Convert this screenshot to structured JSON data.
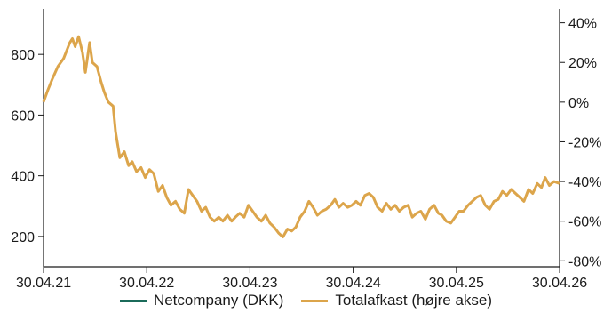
{
  "chart_data": {
    "type": "line",
    "x_tick_labels": [
      "30.04.21",
      "30.04.22",
      "30.04.23",
      "30.04.24",
      "30.04.25",
      "30.04.26"
    ],
    "left_axis": {
      "ticks": [
        200,
        400,
        600,
        800
      ],
      "ylim": [
        100,
        950
      ]
    },
    "right_axis": {
      "ticks": [
        "-80%",
        "-60%",
        "-40%",
        "-20%",
        "0%",
        "20%",
        "40%"
      ],
      "ylim": [
        -83,
        47
      ]
    },
    "series": [
      {
        "name": "Netcompany (DKK)",
        "color": "#1b6b5a",
        "axis": "left",
        "values": []
      },
      {
        "name": "Totalafkast (højre akse)",
        "color": "#dca54b",
        "axis": "right",
        "x": [
          "2021-04-30",
          "2021-05-15",
          "2021-06-01",
          "2021-06-20",
          "2021-07-10",
          "2021-08-01",
          "2021-08-10",
          "2021-08-20",
          "2021-09-01",
          "2021-09-15",
          "2021-09-25",
          "2021-10-10",
          "2021-10-20",
          "2021-11-05",
          "2021-11-20",
          "2021-12-01",
          "2021-12-15",
          "2022-01-01",
          "2022-01-10",
          "2022-01-25",
          "2022-02-10",
          "2022-02-25",
          "2022-03-10",
          "2022-03-25",
          "2022-04-10",
          "2022-04-25",
          "2022-05-10",
          "2022-05-25",
          "2022-06-10",
          "2022-06-25",
          "2022-07-10",
          "2022-07-25",
          "2022-08-10",
          "2022-08-25",
          "2022-09-10",
          "2022-09-25",
          "2022-10-10",
          "2022-10-25",
          "2022-11-10",
          "2022-11-25",
          "2022-12-10",
          "2022-12-25",
          "2023-01-10",
          "2023-01-25",
          "2023-02-10",
          "2023-02-25",
          "2023-03-10",
          "2023-03-25",
          "2023-04-10",
          "2023-04-25",
          "2023-05-10",
          "2023-05-25",
          "2023-06-10",
          "2023-06-25",
          "2023-07-10",
          "2023-07-25",
          "2023-08-10",
          "2023-08-25",
          "2023-09-10",
          "2023-09-25",
          "2023-10-10",
          "2023-10-25",
          "2023-11-10",
          "2023-11-25",
          "2023-12-10",
          "2023-12-25",
          "2024-01-10",
          "2024-01-25",
          "2024-02-10",
          "2024-02-25",
          "2024-03-10",
          "2024-03-25",
          "2024-04-10",
          "2024-04-25",
          "2024-05-10",
          "2024-05-25",
          "2024-06-10",
          "2024-06-25",
          "2024-07-10",
          "2024-07-25",
          "2024-08-10",
          "2024-08-25",
          "2024-09-10",
          "2024-09-25",
          "2024-10-10",
          "2024-10-25",
          "2024-11-10",
          "2024-11-25",
          "2024-12-10",
          "2024-12-25",
          "2025-01-10",
          "2025-01-25",
          "2025-02-10",
          "2025-02-25",
          "2025-03-10",
          "2025-03-25",
          "2025-04-10",
          "2025-04-25",
          "2025-05-10",
          "2025-05-25",
          "2025-06-10",
          "2025-06-25",
          "2025-07-10",
          "2025-07-25",
          "2025-08-10",
          "2025-08-25",
          "2025-09-10",
          "2025-09-25",
          "2025-10-10",
          "2025-10-25",
          "2025-11-10",
          "2025-11-25",
          "2025-12-10",
          "2025-12-25",
          "2026-01-10",
          "2026-01-25",
          "2026-02-10",
          "2026-02-25",
          "2026-03-10",
          "2026-03-25",
          "2026-04-10",
          "2026-04-30"
        ],
        "values": [
          0,
          6,
          12,
          18,
          22,
          30,
          32,
          28,
          33,
          25,
          15,
          30,
          20,
          18,
          10,
          5,
          0,
          -2,
          -15,
          -28,
          -25,
          -32,
          -30,
          -35,
          -33,
          -38,
          -34,
          -36,
          -45,
          -42,
          -48,
          -52,
          -50,
          -54,
          -56,
          -44,
          -47,
          -50,
          -55,
          -53,
          -58,
          -60,
          -58,
          -60,
          -57,
          -60,
          -58,
          -56,
          -58,
          -52,
          -55,
          -58,
          -60,
          -57,
          -61,
          -63,
          -66,
          -68,
          -64,
          -65,
          -63,
          -58,
          -55,
          -50,
          -53,
          -57,
          -55,
          -54,
          -52,
          -49,
          -53,
          -51,
          -53,
          -52,
          -50,
          -52,
          -47,
          -46,
          -48,
          -53,
          -55,
          -51,
          -54,
          -52,
          -55,
          -53,
          -52,
          -58,
          -56,
          -55,
          -59,
          -54,
          -52,
          -56,
          -57,
          -60,
          -61,
          -58,
          -55,
          -55,
          -52,
          -50,
          -48,
          -47,
          -52,
          -54,
          -50,
          -49,
          -45,
          -47,
          -44,
          -46,
          -48,
          -50,
          -44,
          -46,
          -41,
          -43,
          -38,
          -42,
          -40,
          -41
        ]
      }
    ],
    "legend_position": "bottom"
  }
}
